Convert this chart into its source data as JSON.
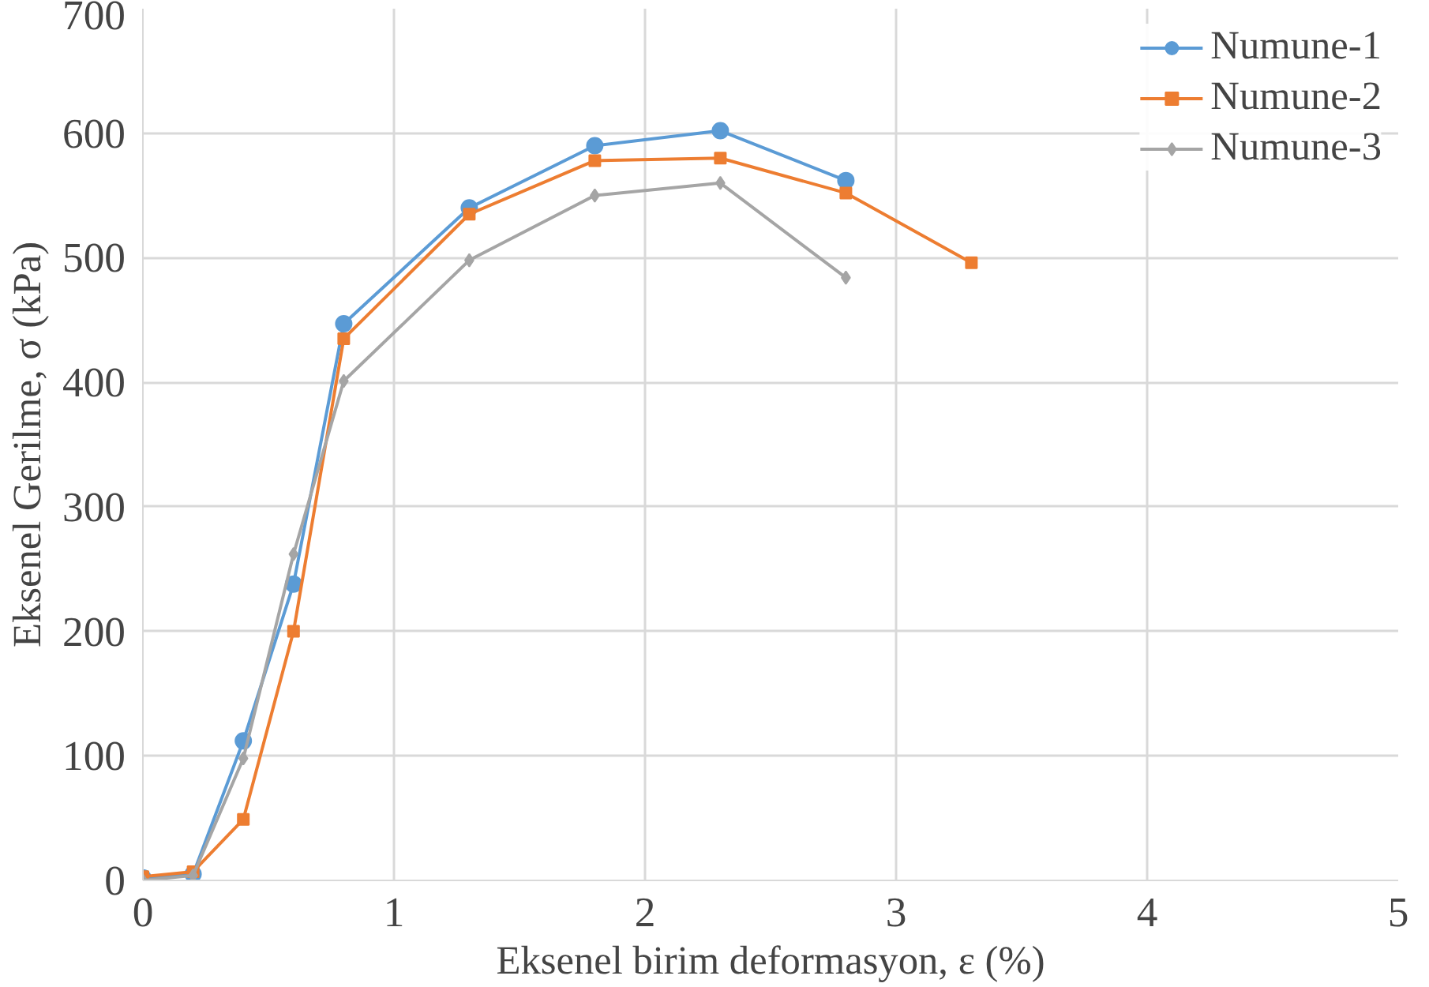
{
  "chart_data": {
    "type": "line",
    "xlabel": "Eksenel birim deformasyon, ε (%)",
    "ylabel": "Eksenel Gerilme, σ (kPa)",
    "xlim": [
      0,
      5
    ],
    "xticks": [
      0,
      1,
      2,
      3,
      4,
      5
    ],
    "ylim": [
      0,
      700
    ],
    "yticks": [
      0,
      100,
      200,
      300,
      400,
      500,
      600,
      700
    ],
    "grid": true,
    "legend": "top right",
    "line_style": "solid",
    "series": [
      {
        "name": "Numune-1",
        "color": "#5b9bd5",
        "marker": "circle",
        "x": [
          0,
          0.2,
          0.4,
          0.6,
          0.8,
          1.3,
          1.8,
          2.3,
          2.8
        ],
        "values": [
          2,
          5,
          112,
          238,
          447,
          540,
          590,
          602,
          562
        ]
      },
      {
        "name": "Numune-2",
        "color": "#ed7d31",
        "marker": "square",
        "x": [
          0,
          0.2,
          0.4,
          0.6,
          0.8,
          1.3,
          1.8,
          2.3,
          2.8,
          3.3
        ],
        "values": [
          3,
          7,
          49,
          200,
          435,
          535,
          578,
          580,
          552,
          496
        ]
      },
      {
        "name": "Numune-3",
        "color": "#a5a5a5",
        "marker": "diamond",
        "x": [
          0,
          0.2,
          0.4,
          0.6,
          0.8,
          1.3,
          1.8,
          2.3,
          2.8
        ],
        "values": [
          0,
          4,
          98,
          262,
          401,
          498,
          550,
          560,
          484
        ]
      }
    ]
  }
}
